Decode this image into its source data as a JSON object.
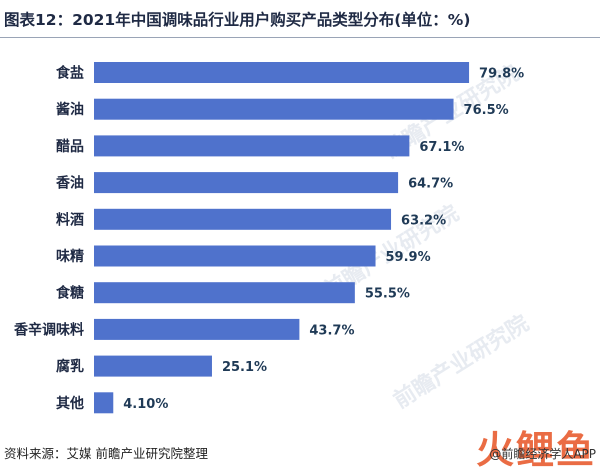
{
  "chart_data": {
    "type": "bar",
    "orientation": "horizontal",
    "title": "图表12：2021年中国调味品行业用户购买产品类型分布(单位：%)",
    "categories": [
      "食盐",
      "酱油",
      "醋品",
      "香油",
      "料酒",
      "味精",
      "食糖",
      "香辛调味料",
      "腐乳",
      "其他"
    ],
    "values": [
      79.8,
      76.5,
      67.1,
      64.7,
      63.2,
      59.9,
      55.5,
      43.7,
      25.1,
      4.1
    ],
    "value_labels": [
      "79.8%",
      "76.5%",
      "67.1%",
      "64.7%",
      "63.2%",
      "59.9%",
      "55.5%",
      "43.7%",
      "25.1%",
      "4.10%"
    ],
    "unit": "%",
    "xlim": [
      0,
      100
    ],
    "grid": false,
    "legend": "none",
    "bar_color": "#4f72cc"
  },
  "footer": {
    "source": "资料来源：艾媒 前瞻产业研究院整理"
  },
  "watermarks": [
    "前瞻产业研究院",
    "前瞻产业研究院",
    "前瞻产业研究院"
  ],
  "logo": {
    "chars": "火鲤鱼",
    "caption": "@前瞻经济学人APP"
  }
}
